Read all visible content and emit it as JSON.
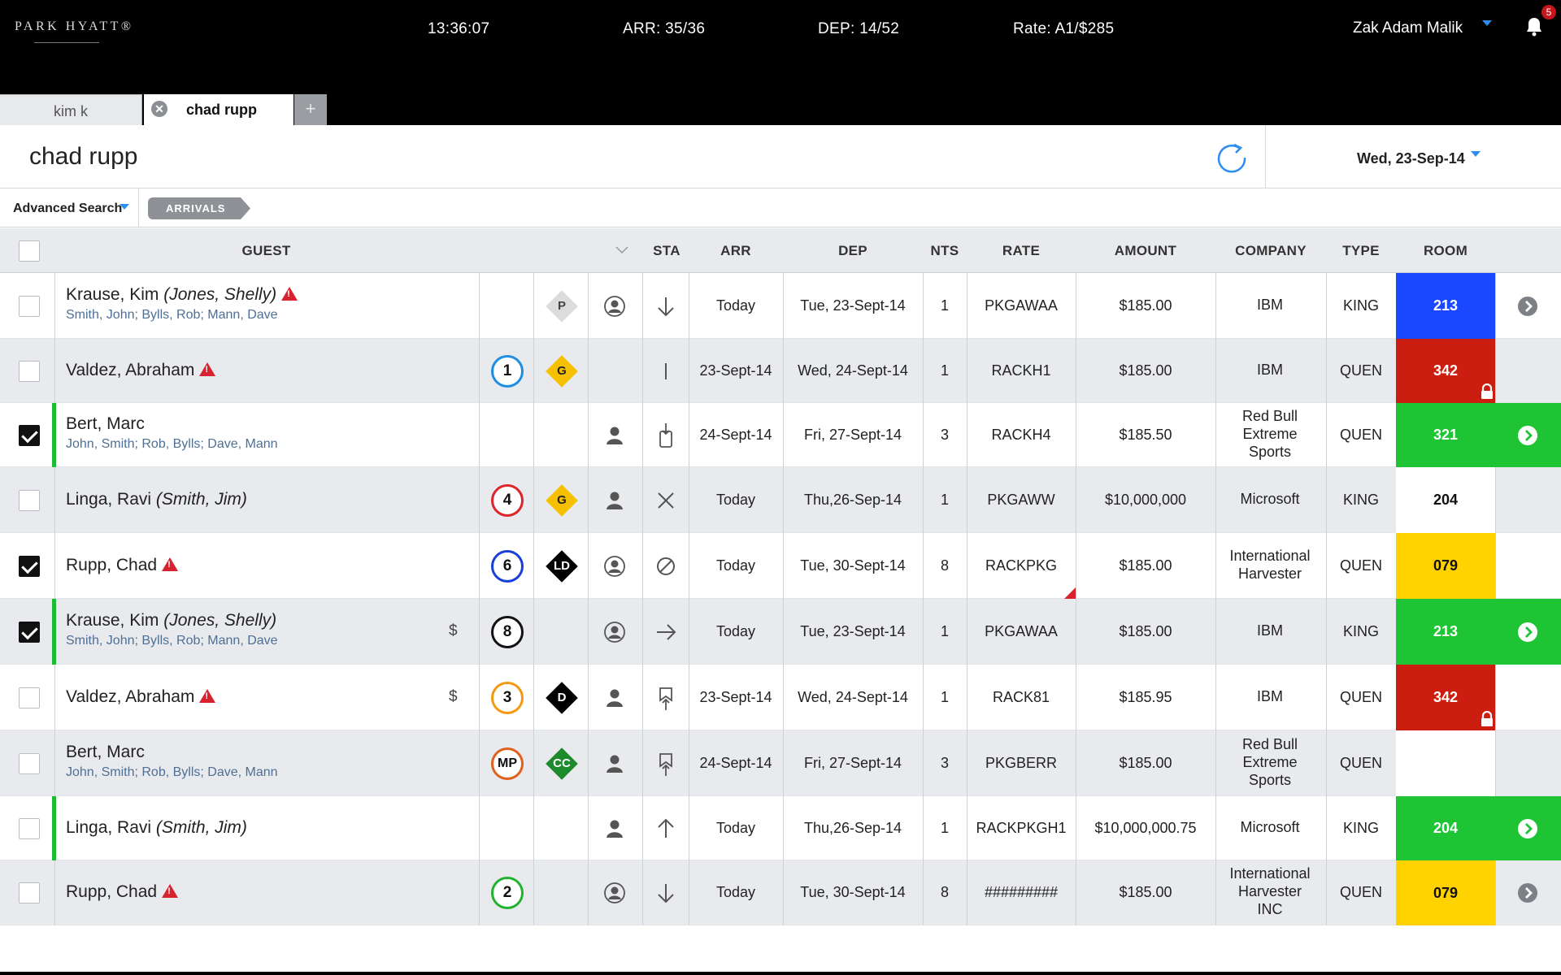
{
  "header": {
    "logo": "PARK HYATT®",
    "time": "13:36:07",
    "arrivals": "ARR: 35/36",
    "departures": "DEP: 14/52",
    "rate": "Rate: A1/$285",
    "user": "Zak Adam Malik",
    "notifications": "5"
  },
  "tabs": [
    {
      "label": "kim k",
      "active": false
    },
    {
      "label": "chad rupp",
      "active": true
    }
  ],
  "tab_add": "+",
  "page": {
    "title": "chad rupp",
    "date": "Wed, 23-Sep-14"
  },
  "filter": {
    "advanced_search": "Advanced Search",
    "chip": "ARRIVALS"
  },
  "table": {
    "columns": {
      "guest": "GUEST",
      "sta": "STA",
      "arr": "ARR",
      "dep": "DEP",
      "nts": "NTS",
      "rate": "RATE",
      "amount": "AMOUNT",
      "company": "COMPANY",
      "type": "TYPE",
      "room": "ROOM"
    },
    "rows": [
      {
        "checked": false,
        "green_bar": false,
        "name": "Krause, Kim",
        "alt": "(Jones, Shelly)",
        "warn": true,
        "sub": "Smith, John; Bylls, Rob; Mann, Dave",
        "dollar": "",
        "circle": "",
        "circle_color": "",
        "diamond": "P",
        "diamond_color": "#dcdcdc",
        "diamond_text": "#444444",
        "person": "outline",
        "sta": "arrow-down",
        "arr": "Today",
        "dep": "Tue, 23-Sept-14",
        "nts": "1",
        "rate": "PKGAWAA",
        "rate_flag": false,
        "amount": "$185.00",
        "company": [
          "IBM"
        ],
        "type": "KING",
        "room": "213",
        "room_bg": "#1a48ff",
        "room_fg": "#ffffff",
        "lock": false,
        "action": "grey"
      },
      {
        "checked": false,
        "green_bar": false,
        "name": "Valdez, Abraham",
        "alt": "",
        "warn": true,
        "sub": "",
        "dollar": "",
        "circle": "1",
        "circle_color": "#1e8fe0",
        "diamond": "G",
        "diamond_color": "#f5c000",
        "diamond_text": "#222222",
        "person": "",
        "sta": "bar",
        "arr": "23-Sept-14",
        "dep": "Wed, 24-Sept-14",
        "nts": "1",
        "rate": "RACKH1",
        "rate_flag": false,
        "amount": "$185.00",
        "company": [
          "IBM"
        ],
        "type": "QUEN",
        "room": "342",
        "room_bg": "#cc1e10",
        "room_fg": "#ffffff",
        "lock": true,
        "action": ""
      },
      {
        "checked": true,
        "green_bar": true,
        "name": "Bert, Marc",
        "alt": "",
        "warn": false,
        "sub": "John, Smith; Rob, Bylls; Dave, Mann",
        "dollar": "",
        "circle": "",
        "circle_color": "",
        "diamond": "",
        "diamond_color": "",
        "diamond_text": "",
        "person": "solid",
        "sta": "phone-in",
        "arr": "24-Sept-14",
        "dep": "Fri, 27-Sept-14",
        "nts": "3",
        "rate": "RACKH4",
        "rate_flag": false,
        "amount": "$185.50",
        "company": [
          "Red Bull",
          "Extreme",
          "Sports"
        ],
        "type": "QUEN",
        "room": "321",
        "room_bg": "#1ec434",
        "room_fg": "#ffffff",
        "lock": false,
        "action": "green"
      },
      {
        "checked": false,
        "green_bar": false,
        "name": "Linga, Ravi",
        "alt": "(Smith, Jim)",
        "warn": false,
        "sub": "",
        "dollar": "",
        "circle": "4",
        "circle_color": "#d9252b",
        "diamond": "G",
        "diamond_color": "#f5c000",
        "diamond_text": "#222222",
        "person": "solid",
        "sta": "x",
        "arr": "Today",
        "dep": "Thu,26-Sep-14",
        "nts": "1",
        "rate": "PKGAWW",
        "rate_flag": false,
        "amount": "$10,000,000",
        "company": [
          "Microsoft"
        ],
        "type": "KING",
        "room": "204",
        "room_bg": "#ffffff",
        "room_fg": "#111111",
        "lock": false,
        "action": ""
      },
      {
        "checked": true,
        "green_bar": false,
        "name": "Rupp, Chad",
        "alt": "",
        "warn": true,
        "sub": "",
        "dollar": "",
        "circle": "6",
        "circle_color": "#1a3ed8",
        "diamond": "LD",
        "diamond_color": "#000000",
        "diamond_text": "#ffffff",
        "person": "outline",
        "sta": "no",
        "arr": "Today",
        "dep": "Tue, 30-Sept-14",
        "nts": "8",
        "rate": "RACKPKG",
        "rate_flag": true,
        "amount": "$185.00",
        "company": [
          "International",
          "Harvester"
        ],
        "type": "QUEN",
        "room": "079",
        "room_bg": "#ffd200",
        "room_fg": "#111111",
        "lock": false,
        "action": ""
      },
      {
        "checked": true,
        "green_bar": true,
        "name": "Krause, Kim",
        "alt": "(Jones, Shelly)",
        "warn": false,
        "sub": "Smith, John; Bylls, Rob; Mann, Dave",
        "dollar": "$",
        "circle": "8",
        "circle_color": "#111111",
        "diamond": "",
        "diamond_color": "",
        "diamond_text": "",
        "person": "outline",
        "sta": "arrow-right",
        "arr": "Today",
        "dep": "Tue, 23-Sept-14",
        "nts": "1",
        "rate": "PKGAWAA",
        "rate_flag": false,
        "amount": "$185.00",
        "company": [
          "IBM"
        ],
        "type": "KING",
        "room": "213",
        "room_bg": "#1ec434",
        "room_fg": "#ffffff",
        "lock": false,
        "action": "green"
      },
      {
        "checked": false,
        "green_bar": false,
        "name": "Valdez, Abraham",
        "alt": "",
        "warn": true,
        "sub": "",
        "dollar": "$",
        "circle": "3",
        "circle_color": "#f59a10",
        "diamond": "D",
        "diamond_color": "#000000",
        "diamond_text": "#ffffff",
        "person": "solid",
        "sta": "bookmark-up",
        "arr": "23-Sept-14",
        "dep": "Wed, 24-Sept-14",
        "nts": "1",
        "rate": "RACK81",
        "rate_flag": false,
        "amount": "$185.95",
        "company": [
          "IBM"
        ],
        "type": "QUEN",
        "room": "342",
        "room_bg": "#cc1e10",
        "room_fg": "#ffffff",
        "lock": true,
        "action": ""
      },
      {
        "checked": false,
        "green_bar": false,
        "name": "Bert, Marc",
        "alt": "",
        "warn": false,
        "sub": "John, Smith; Rob, Bylls; Dave, Mann",
        "dollar": "",
        "circle": "MP",
        "circle_color": "#e0601c",
        "diamond": "CC",
        "diamond_color": "#1e8a2e",
        "diamond_text": "#ffffff",
        "person": "solid",
        "sta": "bookmark-up",
        "arr": "24-Sept-14",
        "dep": "Fri, 27-Sept-14",
        "nts": "3",
        "rate": "PKGBERR",
        "rate_flag": false,
        "amount": "$185.00",
        "company": [
          "Red Bull",
          "Extreme",
          "Sports"
        ],
        "type": "QUEN",
        "room": "",
        "room_bg": "#ffffff",
        "room_fg": "#111111",
        "lock": false,
        "action": ""
      },
      {
        "checked": false,
        "green_bar": true,
        "name": "Linga, Ravi",
        "alt": "(Smith, Jim)",
        "warn": false,
        "sub": "",
        "dollar": "",
        "circle": "",
        "circle_color": "",
        "diamond": "",
        "diamond_color": "",
        "diamond_text": "",
        "person": "solid",
        "sta": "arrow-up",
        "arr": "Today",
        "dep": "Thu,26-Sep-14",
        "nts": "1",
        "rate": "RACKPKGH1",
        "rate_flag": false,
        "amount": "$10,000,000.75",
        "company": [
          "Microsoft"
        ],
        "type": "KING",
        "room": "204",
        "room_bg": "#1ec434",
        "room_fg": "#ffffff",
        "lock": false,
        "action": "green"
      },
      {
        "checked": false,
        "green_bar": false,
        "name": "Rupp, Chad",
        "alt": "",
        "warn": true,
        "sub": "",
        "dollar": "",
        "circle": "2",
        "circle_color": "#22b22f",
        "diamond": "",
        "diamond_color": "",
        "diamond_text": "",
        "person": "outline",
        "sta": "arrow-down",
        "arr": "Today",
        "dep": "Tue, 30-Sept-14",
        "nts": "8",
        "rate": "#########",
        "rate_flag": false,
        "amount": "$185.00",
        "company": [
          "International",
          "Harvester",
          "INC"
        ],
        "type": "QUEN",
        "room": "079",
        "room_bg": "#ffd200",
        "room_fg": "#111111",
        "lock": false,
        "action": "grey"
      }
    ]
  }
}
